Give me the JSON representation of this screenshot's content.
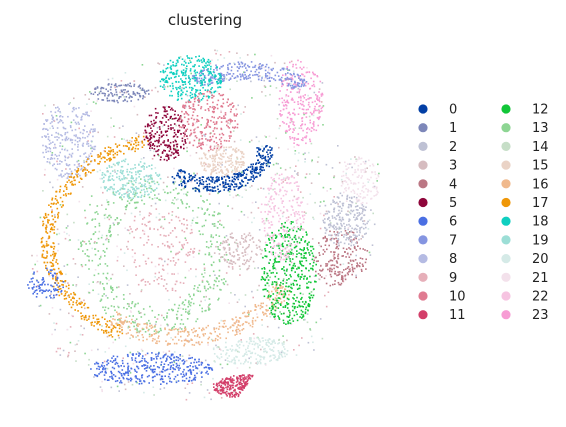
{
  "chart_data": {
    "type": "scatter",
    "title": "clustering",
    "xlabel": "",
    "ylabel": "",
    "axes_visible": false,
    "grid": false,
    "legend_position": "right",
    "legend_columns": 2,
    "legend": [
      {
        "label": "0",
        "color": "#023fa5"
      },
      {
        "label": "1",
        "color": "#7d87b9"
      },
      {
        "label": "2",
        "color": "#bec1d4"
      },
      {
        "label": "3",
        "color": "#d6bcc0"
      },
      {
        "label": "4",
        "color": "#bb7784"
      },
      {
        "label": "5",
        "color": "#8e063b"
      },
      {
        "label": "6",
        "color": "#4a6fe3"
      },
      {
        "label": "7",
        "color": "#8595e1"
      },
      {
        "label": "8",
        "color": "#b5bbe3"
      },
      {
        "label": "9",
        "color": "#e6afb9"
      },
      {
        "label": "10",
        "color": "#e07b91"
      },
      {
        "label": "11",
        "color": "#d33f6a"
      },
      {
        "label": "12",
        "color": "#11c638"
      },
      {
        "label": "13",
        "color": "#8dd593"
      },
      {
        "label": "14",
        "color": "#c6dec7"
      },
      {
        "label": "15",
        "color": "#ead3c6"
      },
      {
        "label": "16",
        "color": "#f0b98d"
      },
      {
        "label": "17",
        "color": "#ef9708"
      },
      {
        "label": "18",
        "color": "#0fcfc0"
      },
      {
        "label": "19",
        "color": "#9cded6"
      },
      {
        "label": "20",
        "color": "#d5eae7"
      },
      {
        "label": "21",
        "color": "#f3e1eb"
      },
      {
        "label": "22",
        "color": "#f6c4e1"
      },
      {
        "label": "23",
        "color": "#f79cd4"
      }
    ]
  }
}
